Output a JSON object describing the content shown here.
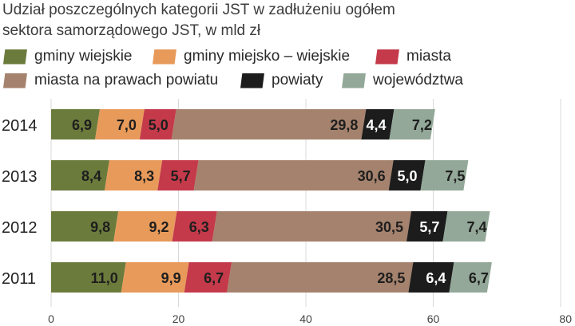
{
  "title": "Udział poszczególnych kategorii JST w zadłużeniu ogółem sektora samorządowego JST, w mld zł",
  "colors": {
    "gminy_wiejskie": "#6b7b3c",
    "gminy_miejsko_wiejskie": "#e79a5a",
    "miasta": "#c43a4a",
    "miasta_na_prawach_powiatu": "#a5826d",
    "powiaty": "#1c1c1c",
    "wojewodztwa": "#93a898"
  },
  "legend": [
    {
      "label": "gminy wiejskie",
      "color": "#6b7b3c"
    },
    {
      "label": "gminy miejsko – wiejskie",
      "color": "#e79a5a"
    },
    {
      "label": "miasta",
      "color": "#c43a4a"
    },
    {
      "label": "miasta na prawach powiatu",
      "color": "#a5826d"
    },
    {
      "label": "powiaty",
      "color": "#1c1c1c"
    },
    {
      "label": "województwa",
      "color": "#93a898"
    }
  ],
  "chart_data": {
    "type": "bar",
    "orientation": "horizontal",
    "stacked": true,
    "title": "Udział poszczególnych kategorii JST w zadłużeniu ogółem sektora samorządowego JST, w mld zł",
    "categories": [
      "2014",
      "2013",
      "2012",
      "2011"
    ],
    "series": [
      {
        "name": "gminy wiejskie",
        "values": [
          6.9,
          8.4,
          9.8,
          11.0
        ],
        "labels": [
          "6,9",
          "8,4",
          "9,8",
          "11,0"
        ]
      },
      {
        "name": "gminy miejsko – wiejskie",
        "values": [
          7.0,
          8.3,
          9.2,
          9.9
        ],
        "labels": [
          "7,0",
          "8,3",
          "9,2",
          "9,9"
        ]
      },
      {
        "name": "miasta",
        "values": [
          5.0,
          5.7,
          6.3,
          6.7
        ],
        "labels": [
          "5,0",
          "5,7",
          "6,3",
          "6,7"
        ]
      },
      {
        "name": "miasta na prawach powiatu",
        "values": [
          29.8,
          30.6,
          30.5,
          28.5
        ],
        "labels": [
          "29,8",
          "30,6",
          "30,5",
          "28,5"
        ]
      },
      {
        "name": "powiaty",
        "values": [
          4.4,
          5.0,
          5.7,
          6.4
        ],
        "labels": [
          "4,4",
          "5,0",
          "5,7",
          "6,4"
        ]
      },
      {
        "name": "województwa",
        "values": [
          7.2,
          7.5,
          7.4,
          6.7
        ],
        "labels": [
          "7,2",
          "7,5",
          "7,4",
          "6,7"
        ]
      }
    ],
    "xlim": [
      0,
      80
    ],
    "xticks": [
      "0",
      "20",
      "40",
      "60",
      "80"
    ],
    "grid": true,
    "legend_position": "top"
  }
}
